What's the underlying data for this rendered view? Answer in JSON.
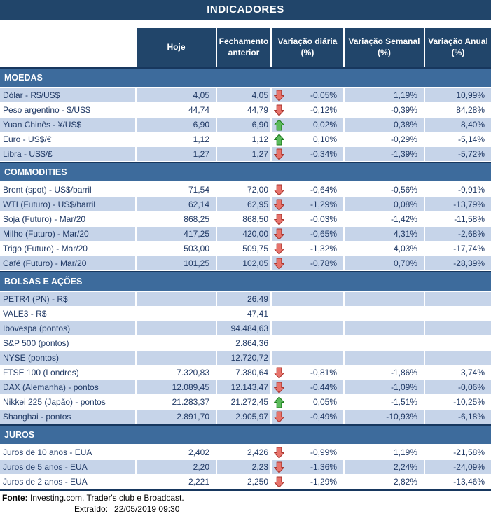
{
  "title": "INDICADORES",
  "columns": [
    "Hoje",
    "Fechamento anterior",
    "Variação diária (%)",
    "Variação Semanal (%)",
    "Variação Anual (%)"
  ],
  "sections": [
    {
      "name": "MOEDAS",
      "rows": [
        {
          "label": "Dólar - R$/US$",
          "hoje": "4,05",
          "fechamento": "4,05",
          "arrow": "down",
          "diaria": "-0,05%",
          "semanal": "1,19%",
          "anual": "10,99%"
        },
        {
          "label": "Peso argentino - $/US$",
          "hoje": "44,74",
          "fechamento": "44,79",
          "arrow": "down",
          "diaria": "-0,12%",
          "semanal": "-0,39%",
          "anual": "84,28%"
        },
        {
          "label": "Yuan Chinês - ¥/US$",
          "hoje": "6,90",
          "fechamento": "6,90",
          "arrow": "up",
          "diaria": "0,02%",
          "semanal": "0,38%",
          "anual": "8,40%"
        },
        {
          "label": "Euro - US$/€",
          "hoje": "1,12",
          "fechamento": "1,12",
          "arrow": "up",
          "diaria": "0,10%",
          "semanal": "-0,29%",
          "anual": "-5,14%"
        },
        {
          "label": "Libra - US$/£",
          "hoje": "1,27",
          "fechamento": "1,27",
          "arrow": "down",
          "diaria": "-0,34%",
          "semanal": "-1,39%",
          "anual": "-5,72%"
        }
      ]
    },
    {
      "name": "COMMODITIES",
      "rows": [
        {
          "label": "Brent (spot) - US$/barril",
          "hoje": "71,54",
          "fechamento": "72,00",
          "arrow": "down",
          "diaria": "-0,64%",
          "semanal": "-0,56%",
          "anual": "-9,91%"
        },
        {
          "label": "WTI (Futuro) - US$/barril",
          "hoje": "62,14",
          "fechamento": "62,95",
          "arrow": "down",
          "diaria": "-1,29%",
          "semanal": "0,08%",
          "anual": "-13,79%"
        },
        {
          "label": "Soja (Futuro) - Mar/20",
          "hoje": "868,25",
          "fechamento": "868,50",
          "arrow": "down",
          "diaria": "-0,03%",
          "semanal": "-1,42%",
          "anual": "-11,58%"
        },
        {
          "label": "Milho (Futuro) - Mar/20",
          "hoje": "417,25",
          "fechamento": "420,00",
          "arrow": "down",
          "diaria": "-0,65%",
          "semanal": "4,31%",
          "anual": "-2,68%"
        },
        {
          "label": "Trigo (Futuro) - Mar/20",
          "hoje": "503,00",
          "fechamento": "509,75",
          "arrow": "down",
          "diaria": "-1,32%",
          "semanal": "4,03%",
          "anual": "-17,74%"
        },
        {
          "label": "Café (Futuro) - Mar/20",
          "hoje": "101,25",
          "fechamento": "102,05",
          "arrow": "down",
          "diaria": "-0,78%",
          "semanal": "0,70%",
          "anual": "-28,39%"
        }
      ]
    },
    {
      "name": "BOLSAS E AÇÕES",
      "rows": [
        {
          "label": "PETR4 (PN) - R$",
          "hoje": "",
          "fechamento": "26,49",
          "arrow": "",
          "diaria": "",
          "semanal": "",
          "anual": ""
        },
        {
          "label": "VALE3 - R$",
          "hoje": "",
          "fechamento": "47,41",
          "arrow": "",
          "diaria": "",
          "semanal": "",
          "anual": ""
        },
        {
          "label": "Ibovespa (pontos)",
          "hoje": "",
          "fechamento": "94.484,63",
          "arrow": "",
          "diaria": "",
          "semanal": "",
          "anual": ""
        },
        {
          "label": "S&P 500 (pontos)",
          "hoje": "",
          "fechamento": "2.864,36",
          "arrow": "",
          "diaria": "",
          "semanal": "",
          "anual": ""
        },
        {
          "label": "NYSE (pontos)",
          "hoje": "",
          "fechamento": "12.720,72",
          "arrow": "",
          "diaria": "",
          "semanal": "",
          "anual": ""
        },
        {
          "label": "FTSE 100 (Londres)",
          "hoje": "7.320,83",
          "fechamento": "7.380,64",
          "arrow": "down",
          "diaria": "-0,81%",
          "semanal": "-1,86%",
          "anual": "3,74%"
        },
        {
          "label": "DAX (Alemanha) - pontos",
          "hoje": "12.089,45",
          "fechamento": "12.143,47",
          "arrow": "down",
          "diaria": "-0,44%",
          "semanal": "-1,09%",
          "anual": "-0,06%"
        },
        {
          "label": "Nikkei 225 (Japão) - pontos",
          "hoje": "21.283,37",
          "fechamento": "21.272,45",
          "arrow": "up",
          "diaria": "0,05%",
          "semanal": "-1,51%",
          "anual": "-10,25%"
        },
        {
          "label": "Shanghai - pontos",
          "hoje": "2.891,70",
          "fechamento": "2.905,97",
          "arrow": "down",
          "diaria": "-0,49%",
          "semanal": "-10,93%",
          "anual": "-6,18%"
        }
      ]
    },
    {
      "name": "JUROS",
      "rows": [
        {
          "label": "Juros de 10 anos - EUA",
          "hoje": "2,402",
          "fechamento": "2,426",
          "arrow": "down",
          "diaria": "-0,99%",
          "semanal": "1,19%",
          "anual": "-21,58%"
        },
        {
          "label": "Juros de 5 anos - EUA",
          "hoje": "2,20",
          "fechamento": "2,23",
          "arrow": "down",
          "diaria": "-1,36%",
          "semanal": "2,24%",
          "anual": "-24,09%"
        },
        {
          "label": "Juros de 2 anos - EUA",
          "hoje": "2,221",
          "fechamento": "2,250",
          "arrow": "down",
          "diaria": "-1,29%",
          "semanal": "2,82%",
          "anual": "-13,46%"
        }
      ]
    }
  ],
  "footer": {
    "fonte_label": "Fonte:",
    "fonte_text": " Investing.com, Trader's club e Broadcast.",
    "extraido_label": "Extraído:",
    "extraido_value": "22/05/2019 09:30"
  },
  "icons": {
    "up": "arrow-up-icon",
    "down": "arrow-down-icon"
  },
  "colors": {
    "header_navy": "#21456A",
    "section_band_blue": "#3D6B9C",
    "row_stripe_blue": "#C6D4E9",
    "dark_border": "#17375E",
    "data_text": "#1F3864",
    "arrow_up_fill": "#5BBB5B",
    "arrow_up_stroke": "#1E7C1E",
    "arrow_down_fill": "#E8736B",
    "arrow_down_stroke": "#A8352F"
  }
}
